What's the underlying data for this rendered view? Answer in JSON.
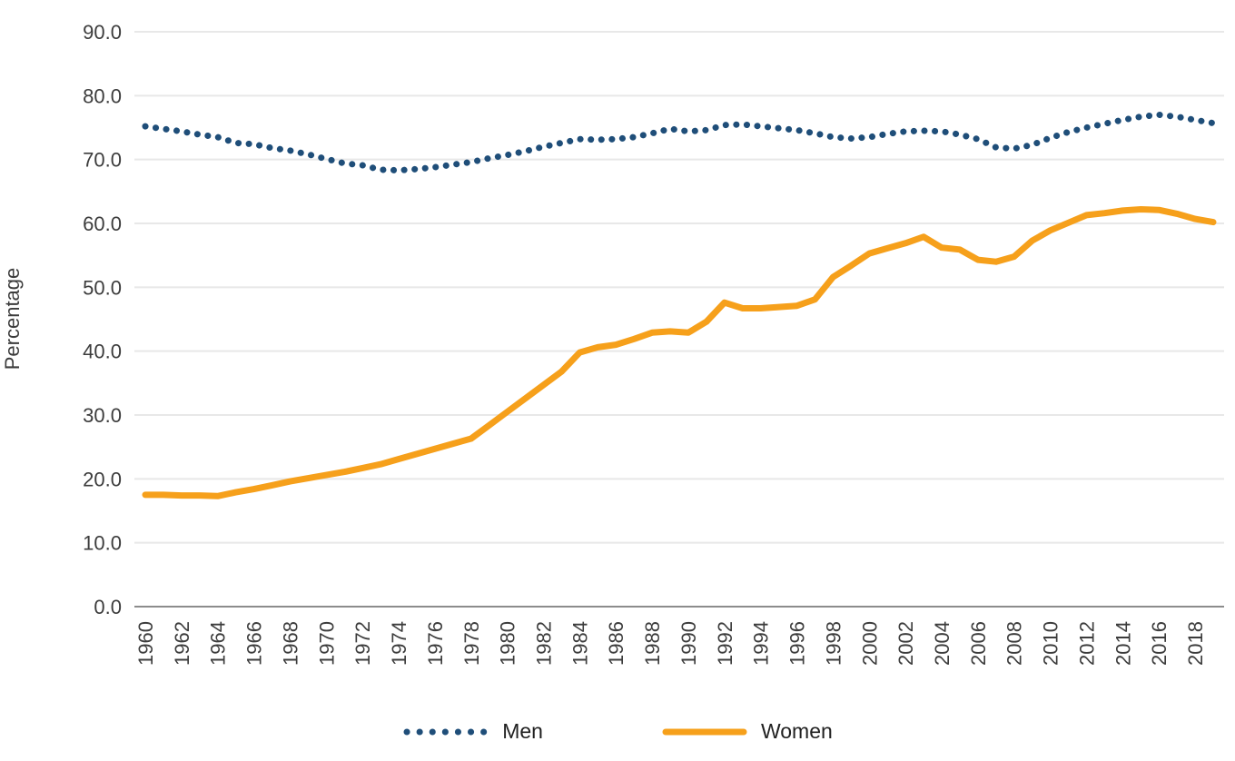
{
  "chart_data": {
    "type": "line",
    "title": "",
    "xlabel": "",
    "ylabel": "Percentage",
    "ylim": [
      0,
      90
    ],
    "ytick_step": 10,
    "ytick_decimals": 1,
    "xtick_step": 2,
    "grid": "horizontal",
    "legend_position": "bottom",
    "grid_color": "#E8E8E8",
    "axis_color": "#8C8C8C",
    "text_color": "#3C3C3C",
    "x": [
      1960,
      1961,
      1962,
      1963,
      1964,
      1965,
      1966,
      1967,
      1968,
      1969,
      1970,
      1971,
      1972,
      1973,
      1974,
      1975,
      1976,
      1977,
      1978,
      1979,
      1980,
      1981,
      1982,
      1983,
      1984,
      1985,
      1986,
      1987,
      1988,
      1989,
      1990,
      1991,
      1992,
      1993,
      1994,
      1995,
      1996,
      1997,
      1998,
      1999,
      2000,
      2001,
      2002,
      2003,
      2004,
      2005,
      2006,
      2007,
      2008,
      2009,
      2010,
      2011,
      2012,
      2013,
      2014,
      2015,
      2016,
      2017,
      2018,
      2019
    ],
    "series": [
      {
        "name": "Men",
        "style": "dotted",
        "color": "#1F4E79",
        "values": [
          75.2,
          74.8,
          74.4,
          73.9,
          73.5,
          72.6,
          72.4,
          71.8,
          71.4,
          70.8,
          70.1,
          69.4,
          69.1,
          68.4,
          68.3,
          68.5,
          68.8,
          69.2,
          69.6,
          70.2,
          70.7,
          71.3,
          72.0,
          72.6,
          73.2,
          73.1,
          73.2,
          73.5,
          74.1,
          74.8,
          74.4,
          74.6,
          75.4,
          75.5,
          75.2,
          74.9,
          74.6,
          74.1,
          73.5,
          73.3,
          73.5,
          74.0,
          74.4,
          74.5,
          74.4,
          73.9,
          73.2,
          71.9,
          71.7,
          72.3,
          73.4,
          74.3,
          75.0,
          75.6,
          76.2,
          76.7,
          77.0,
          76.7,
          76.2,
          75.7
        ]
      },
      {
        "name": "Women",
        "style": "solid",
        "color": "#F6A01B",
        "values": [
          17.5,
          17.5,
          17.4,
          17.4,
          17.3,
          17.9,
          18.4,
          19.0,
          19.6,
          20.1,
          20.6,
          21.1,
          21.7,
          22.3,
          23.1,
          23.9,
          24.7,
          25.5,
          26.3,
          28.4,
          30.5,
          32.6,
          34.7,
          36.8,
          39.8,
          40.6,
          41.0,
          41.9,
          42.9,
          43.1,
          42.9,
          44.6,
          47.6,
          46.7,
          46.7,
          46.9,
          47.1,
          48.1,
          51.6,
          53.4,
          55.3,
          56.1,
          56.9,
          57.9,
          56.2,
          55.9,
          54.3,
          54.0,
          54.8,
          57.3,
          58.9,
          60.1,
          61.3,
          61.6,
          62.0,
          62.2,
          62.1,
          61.5,
          60.7,
          60.2
        ]
      }
    ]
  }
}
